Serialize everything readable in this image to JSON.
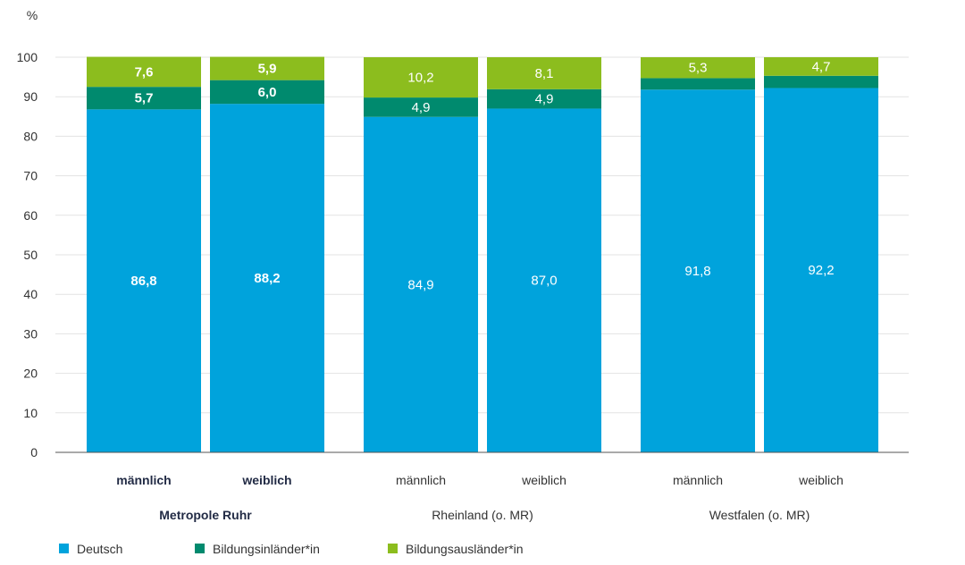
{
  "chart_data": {
    "type": "bar",
    "stacked": true,
    "y_unit": "%",
    "ylim": [
      0,
      100
    ],
    "yticks": [
      0,
      10,
      20,
      30,
      40,
      50,
      60,
      70,
      80,
      90,
      100
    ],
    "grid": true,
    "legend_position": "bottom-left",
    "groups": [
      {
        "label": "Metropole Ruhr",
        "bold": true,
        "categories": [
          {
            "label": "männlich",
            "values": [
              86.8,
              5.7,
              7.6
            ],
            "value_labels": [
              "86,8",
              "5,7",
              "7,6"
            ]
          },
          {
            "label": "weiblich",
            "values": [
              88.2,
              6.0,
              5.9
            ],
            "value_labels": [
              "88,2",
              "6,0",
              "5,9"
            ]
          }
        ]
      },
      {
        "label": "Rheinland (o. MR)",
        "bold": false,
        "categories": [
          {
            "label": "männlich",
            "values": [
              84.9,
              4.9,
              10.2
            ],
            "value_labels": [
              "84,9",
              "4,9",
              "10,2"
            ]
          },
          {
            "label": "weiblich",
            "values": [
              87.0,
              4.9,
              8.1
            ],
            "value_labels": [
              "87,0",
              "4,9",
              "8,1"
            ]
          }
        ]
      },
      {
        "label": "Westfalen (o. MR)",
        "bold": false,
        "categories": [
          {
            "label": "männlich",
            "values": [
              91.8,
              2.9,
              5.3
            ],
            "value_labels": [
              "91,8",
              "",
              "5,3"
            ]
          },
          {
            "label": "weiblich",
            "values": [
              92.2,
              3.1,
              4.7
            ],
            "value_labels": [
              "92,2",
              "",
              "4,7"
            ]
          }
        ]
      }
    ],
    "series": [
      {
        "name": "Deutsch",
        "color": "#00a3dc"
      },
      {
        "name": "Bildungsinländer*in",
        "color": "#008a6e"
      },
      {
        "name": "Bildungsausländer*in",
        "color": "#8cbd1e"
      }
    ]
  }
}
